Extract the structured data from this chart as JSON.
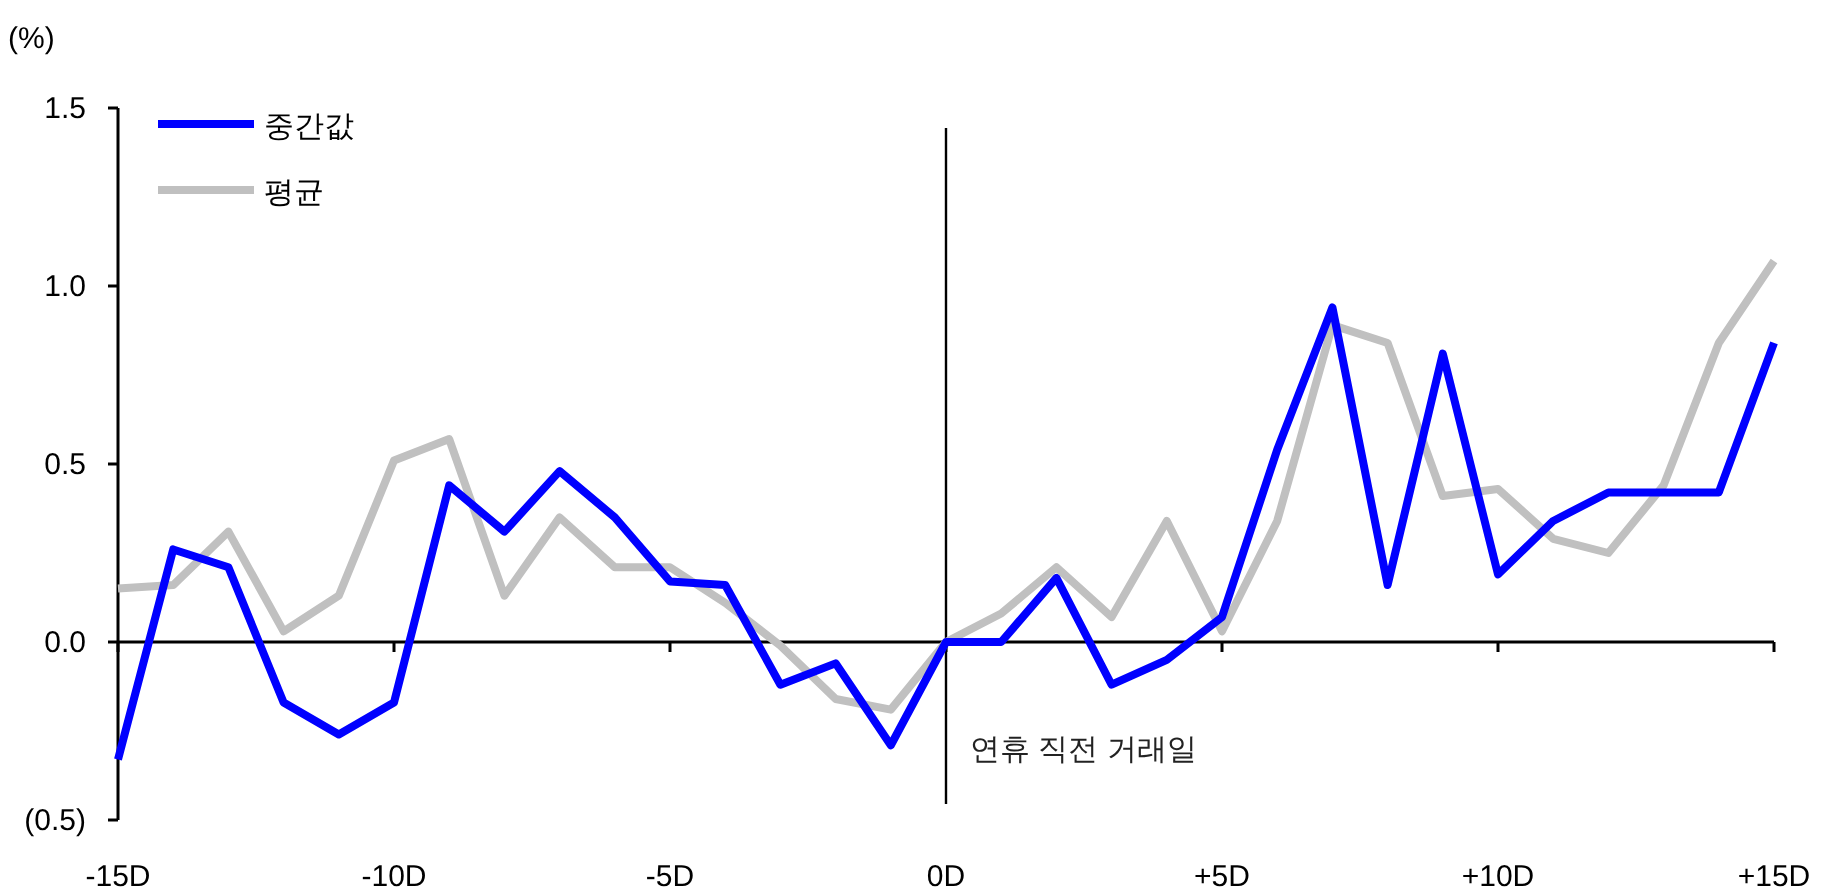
{
  "chart_data": {
    "type": "line",
    "ylabel": "(%)",
    "x": [
      -15,
      -14,
      -13,
      -12,
      -11,
      -10,
      -9,
      -8,
      -7,
      -6,
      -5,
      -4,
      -3,
      -2,
      -1,
      0,
      1,
      2,
      3,
      4,
      5,
      6,
      7,
      8,
      9,
      10,
      11,
      12,
      13,
      14,
      15
    ],
    "series": [
      {
        "name": "중간값",
        "color": "#0000ff",
        "values": [
          -0.33,
          0.26,
          0.21,
          -0.17,
          -0.26,
          -0.17,
          0.44,
          0.31,
          0.48,
          0.35,
          0.17,
          0.16,
          -0.12,
          -0.06,
          -0.29,
          0.0,
          0.0,
          0.18,
          -0.12,
          -0.05,
          0.07,
          0.54,
          0.94,
          0.16,
          0.81,
          0.19,
          0.34,
          0.42,
          0.42,
          0.42,
          0.84
        ]
      },
      {
        "name": "평균",
        "color": "#c0c0c0",
        "values": [
          0.15,
          0.16,
          0.31,
          0.03,
          0.13,
          0.51,
          0.57,
          0.13,
          0.35,
          0.21,
          0.21,
          0.11,
          -0.01,
          -0.16,
          -0.19,
          0.0,
          0.08,
          0.21,
          0.07,
          0.34,
          0.03,
          0.34,
          0.89,
          0.84,
          0.41,
          0.43,
          0.29,
          0.25,
          0.44,
          0.84,
          1.07
        ]
      }
    ],
    "xlim": [
      -15,
      15
    ],
    "xticks": [
      {
        "value": -15,
        "label": "-15D"
      },
      {
        "value": -10,
        "label": "-10D"
      },
      {
        "value": -5,
        "label": "-5D"
      },
      {
        "value": 0,
        "label": "0D"
      },
      {
        "value": 5,
        "label": "+5D"
      },
      {
        "value": 10,
        "label": "+10D"
      },
      {
        "value": 15,
        "label": "+15D"
      }
    ],
    "ylim": [
      -0.5,
      1.5
    ],
    "yticks": [
      {
        "value": 1.5,
        "label": "1.5"
      },
      {
        "value": 1.0,
        "label": "1.0"
      },
      {
        "value": 0.5,
        "label": "0.5"
      },
      {
        "value": 0.0,
        "label": "0.0"
      },
      {
        "value": -0.5,
        "label": "(0.5)"
      }
    ],
    "ref_lines": [
      {
        "axis": "x",
        "value": 0,
        "label": "연휴 직전 거래일",
        "color": "#000000"
      }
    ],
    "legend": "top left",
    "marker": "none",
    "line_style": "solid",
    "grid": false
  }
}
